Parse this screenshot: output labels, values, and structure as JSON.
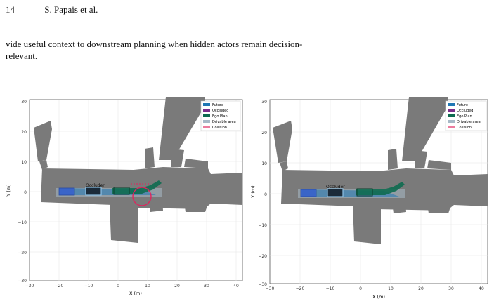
{
  "header": {
    "page_number": "14",
    "authors": "S. Papais et al."
  },
  "paragraph": [
    "vide useful context to downstream planning when hidden actors remain decision-",
    "relevant."
  ],
  "colors": {
    "future": "#1f77b4",
    "occluded": "#7b2d8b",
    "ego_plan": "#0e6b50",
    "drivable": "#a7b9c7",
    "collision": "#e0245e",
    "map_gray": "#7a7a7a"
  },
  "chart_data": [
    {
      "type": "scatter",
      "xlabel": "X (m)",
      "ylabel": "Y (m)",
      "xlim": [
        -30,
        42
      ],
      "ylim": [
        -30,
        31
      ],
      "x_ticks": [
        "−30",
        "−20",
        "−10",
        "0",
        "10",
        "20",
        "30",
        "40"
      ],
      "y_ticks": [
        "−30",
        "−20",
        "−10",
        "0",
        "10",
        "20",
        "30"
      ],
      "grid": true,
      "legend_position": "top-right",
      "legend": [
        "Future",
        "Occluded",
        "Ego Plan",
        "Drivable area",
        "Collision"
      ],
      "annotations": [
        {
          "text": "Occluder"
        }
      ],
      "collision_circle": {
        "x": 7,
        "y": -2,
        "r": 3.5
      }
    },
    {
      "type": "scatter",
      "xlabel": "X (m)",
      "ylabel": "Y (m)",
      "xlim": [
        -30,
        42
      ],
      "ylim": [
        -30,
        31
      ],
      "x_ticks": [
        "−30",
        "−20",
        "−10",
        "0",
        "10",
        "20",
        "30",
        "40"
      ],
      "y_ticks": [
        "−30",
        "−20",
        "−10",
        "0",
        "10",
        "20",
        "30"
      ],
      "grid": true,
      "legend_position": "top-right",
      "legend": [
        "Future",
        "Occluded",
        "Ego Plan",
        "Drivable area",
        "Collision"
      ],
      "annotations": [
        {
          "text": "Occluder"
        }
      ]
    }
  ]
}
